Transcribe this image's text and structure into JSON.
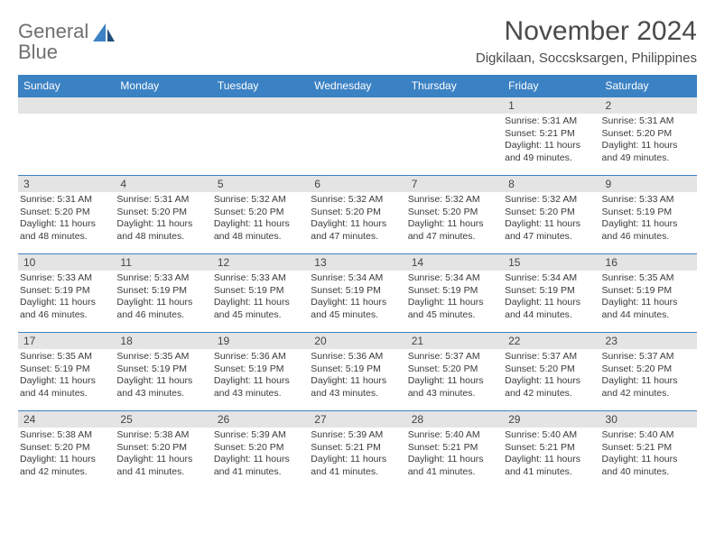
{
  "brand": {
    "word1": "General",
    "word2": "Blue"
  },
  "title": "November 2024",
  "location": "Digkilaan, Soccsksargen, Philippines",
  "colors": {
    "accent": "#3b82c4",
    "dayhead_text": "#ffffff",
    "daynum_bg": "#e4e4e4",
    "text": "#3a3a3a",
    "background": "#ffffff"
  },
  "day_headers": [
    "Sunday",
    "Monday",
    "Tuesday",
    "Wednesday",
    "Thursday",
    "Friday",
    "Saturday"
  ],
  "weeks": [
    [
      {
        "blank": true
      },
      {
        "blank": true
      },
      {
        "blank": true
      },
      {
        "blank": true
      },
      {
        "blank": true
      },
      {
        "day": "1",
        "sunrise": "Sunrise: 5:31 AM",
        "sunset": "Sunset: 5:21 PM",
        "daylight": "Daylight: 11 hours and 49 minutes."
      },
      {
        "day": "2",
        "sunrise": "Sunrise: 5:31 AM",
        "sunset": "Sunset: 5:20 PM",
        "daylight": "Daylight: 11 hours and 49 minutes."
      }
    ],
    [
      {
        "day": "3",
        "sunrise": "Sunrise: 5:31 AM",
        "sunset": "Sunset: 5:20 PM",
        "daylight": "Daylight: 11 hours and 48 minutes."
      },
      {
        "day": "4",
        "sunrise": "Sunrise: 5:31 AM",
        "sunset": "Sunset: 5:20 PM",
        "daylight": "Daylight: 11 hours and 48 minutes."
      },
      {
        "day": "5",
        "sunrise": "Sunrise: 5:32 AM",
        "sunset": "Sunset: 5:20 PM",
        "daylight": "Daylight: 11 hours and 48 minutes."
      },
      {
        "day": "6",
        "sunrise": "Sunrise: 5:32 AM",
        "sunset": "Sunset: 5:20 PM",
        "daylight": "Daylight: 11 hours and 47 minutes."
      },
      {
        "day": "7",
        "sunrise": "Sunrise: 5:32 AM",
        "sunset": "Sunset: 5:20 PM",
        "daylight": "Daylight: 11 hours and 47 minutes."
      },
      {
        "day": "8",
        "sunrise": "Sunrise: 5:32 AM",
        "sunset": "Sunset: 5:20 PM",
        "daylight": "Daylight: 11 hours and 47 minutes."
      },
      {
        "day": "9",
        "sunrise": "Sunrise: 5:33 AM",
        "sunset": "Sunset: 5:19 PM",
        "daylight": "Daylight: 11 hours and 46 minutes."
      }
    ],
    [
      {
        "day": "10",
        "sunrise": "Sunrise: 5:33 AM",
        "sunset": "Sunset: 5:19 PM",
        "daylight": "Daylight: 11 hours and 46 minutes."
      },
      {
        "day": "11",
        "sunrise": "Sunrise: 5:33 AM",
        "sunset": "Sunset: 5:19 PM",
        "daylight": "Daylight: 11 hours and 46 minutes."
      },
      {
        "day": "12",
        "sunrise": "Sunrise: 5:33 AM",
        "sunset": "Sunset: 5:19 PM",
        "daylight": "Daylight: 11 hours and 45 minutes."
      },
      {
        "day": "13",
        "sunrise": "Sunrise: 5:34 AM",
        "sunset": "Sunset: 5:19 PM",
        "daylight": "Daylight: 11 hours and 45 minutes."
      },
      {
        "day": "14",
        "sunrise": "Sunrise: 5:34 AM",
        "sunset": "Sunset: 5:19 PM",
        "daylight": "Daylight: 11 hours and 45 minutes."
      },
      {
        "day": "15",
        "sunrise": "Sunrise: 5:34 AM",
        "sunset": "Sunset: 5:19 PM",
        "daylight": "Daylight: 11 hours and 44 minutes."
      },
      {
        "day": "16",
        "sunrise": "Sunrise: 5:35 AM",
        "sunset": "Sunset: 5:19 PM",
        "daylight": "Daylight: 11 hours and 44 minutes."
      }
    ],
    [
      {
        "day": "17",
        "sunrise": "Sunrise: 5:35 AM",
        "sunset": "Sunset: 5:19 PM",
        "daylight": "Daylight: 11 hours and 44 minutes."
      },
      {
        "day": "18",
        "sunrise": "Sunrise: 5:35 AM",
        "sunset": "Sunset: 5:19 PM",
        "daylight": "Daylight: 11 hours and 43 minutes."
      },
      {
        "day": "19",
        "sunrise": "Sunrise: 5:36 AM",
        "sunset": "Sunset: 5:19 PM",
        "daylight": "Daylight: 11 hours and 43 minutes."
      },
      {
        "day": "20",
        "sunrise": "Sunrise: 5:36 AM",
        "sunset": "Sunset: 5:19 PM",
        "daylight": "Daylight: 11 hours and 43 minutes."
      },
      {
        "day": "21",
        "sunrise": "Sunrise: 5:37 AM",
        "sunset": "Sunset: 5:20 PM",
        "daylight": "Daylight: 11 hours and 43 minutes."
      },
      {
        "day": "22",
        "sunrise": "Sunrise: 5:37 AM",
        "sunset": "Sunset: 5:20 PM",
        "daylight": "Daylight: 11 hours and 42 minutes."
      },
      {
        "day": "23",
        "sunrise": "Sunrise: 5:37 AM",
        "sunset": "Sunset: 5:20 PM",
        "daylight": "Daylight: 11 hours and 42 minutes."
      }
    ],
    [
      {
        "day": "24",
        "sunrise": "Sunrise: 5:38 AM",
        "sunset": "Sunset: 5:20 PM",
        "daylight": "Daylight: 11 hours and 42 minutes."
      },
      {
        "day": "25",
        "sunrise": "Sunrise: 5:38 AM",
        "sunset": "Sunset: 5:20 PM",
        "daylight": "Daylight: 11 hours and 41 minutes."
      },
      {
        "day": "26",
        "sunrise": "Sunrise: 5:39 AM",
        "sunset": "Sunset: 5:20 PM",
        "daylight": "Daylight: 11 hours and 41 minutes."
      },
      {
        "day": "27",
        "sunrise": "Sunrise: 5:39 AM",
        "sunset": "Sunset: 5:21 PM",
        "daylight": "Daylight: 11 hours and 41 minutes."
      },
      {
        "day": "28",
        "sunrise": "Sunrise: 5:40 AM",
        "sunset": "Sunset: 5:21 PM",
        "daylight": "Daylight: 11 hours and 41 minutes."
      },
      {
        "day": "29",
        "sunrise": "Sunrise: 5:40 AM",
        "sunset": "Sunset: 5:21 PM",
        "daylight": "Daylight: 11 hours and 41 minutes."
      },
      {
        "day": "30",
        "sunrise": "Sunrise: 5:40 AM",
        "sunset": "Sunset: 5:21 PM",
        "daylight": "Daylight: 11 hours and 40 minutes."
      }
    ]
  ]
}
